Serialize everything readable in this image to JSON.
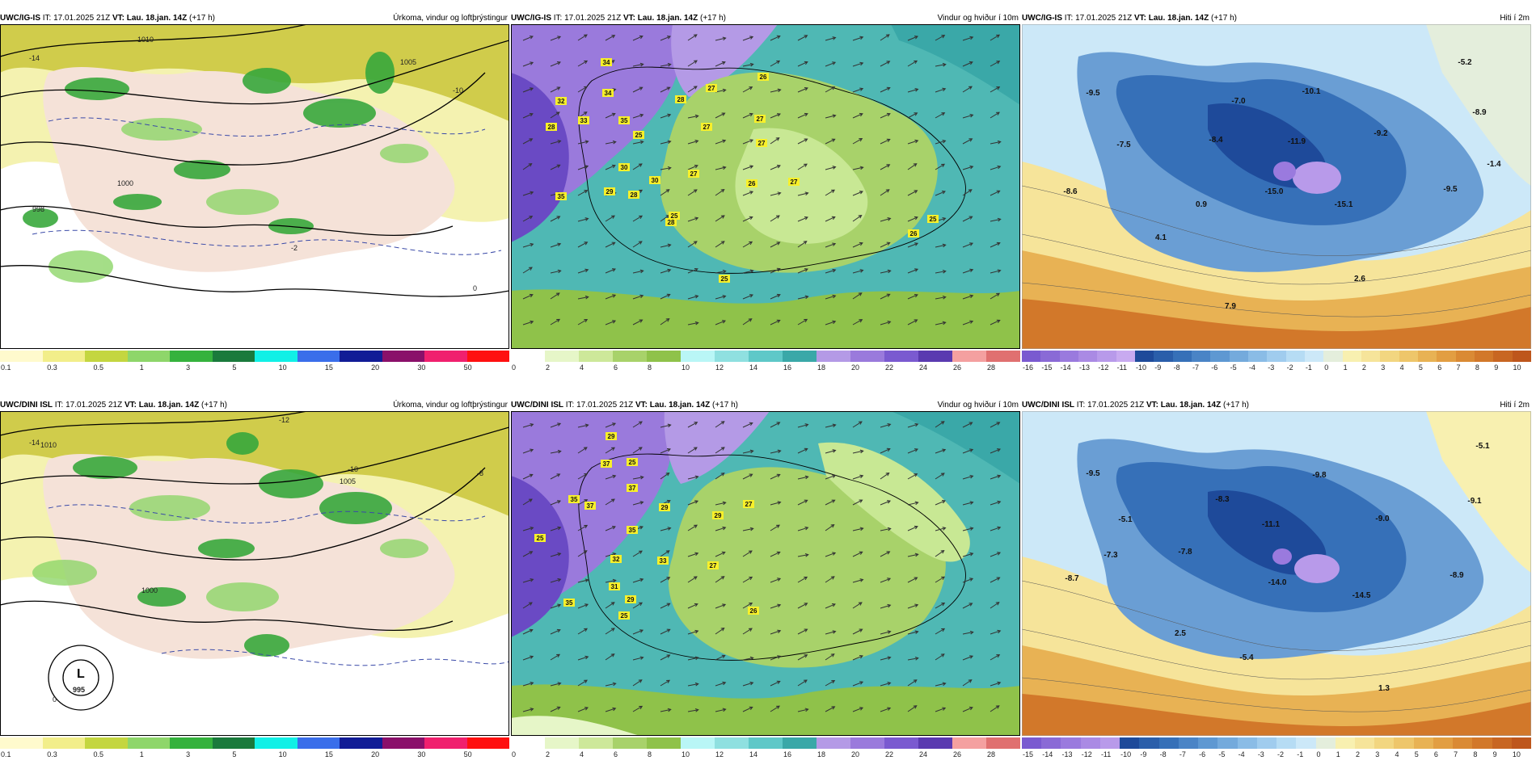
{
  "panels": [
    {
      "id": "igis-precip",
      "header": {
        "source": "UWC/IG-IS",
        "it_label": "IT:",
        "it_value": "17.01.2025 21Z",
        "vt_label": "VT:",
        "vt_value": "Lau. 18.jan. 14Z",
        "offset": "(+17 h)",
        "title": "Úrkoma, vindur og loftþrýstingur"
      },
      "scale_ticks": [
        "0.1",
        "0.3",
        "0.5",
        "1",
        "3",
        "5",
        "10",
        "15",
        "20",
        "30",
        "50"
      ],
      "scale_colors": [
        "#fffacd",
        "#f2ee8a",
        "#c4d640",
        "#8ed66a",
        "#35b23d",
        "#1a7a3c",
        "#11f0e6",
        "#3a6eea",
        "#111c96",
        "#8a106a",
        "#f0206e",
        "#ff1010"
      ],
      "labels": [
        {
          "t": "1010"
        },
        {
          "t": "1005"
        },
        {
          "t": "1000"
        },
        {
          "t": "998"
        },
        {
          "t": "-14"
        },
        {
          "t": "-10"
        },
        {
          "t": "-2"
        },
        {
          "t": "0"
        }
      ]
    },
    {
      "id": "igis-wind",
      "header": {
        "source": "UWC/IG-IS",
        "it_label": "IT:",
        "it_value": "17.01.2025 21Z",
        "vt_label": "VT:",
        "vt_value": "Lau. 18.jan. 14Z",
        "offset": "(+17 h)",
        "title": "Vindur og hviður í 10m"
      },
      "scale_ticks": [
        "0",
        "2",
        "4",
        "6",
        "8",
        "10",
        "12",
        "14",
        "16",
        "18",
        "20",
        "22",
        "24",
        "26",
        "28"
      ],
      "scale_colors": [
        "#ffffff",
        "#e6f6c8",
        "#cde89a",
        "#a8d26a",
        "#8fc24a",
        "#b9f6f6",
        "#8fe0e0",
        "#5fc8c8",
        "#3aa8a8",
        "#b49ae6",
        "#9a7adc",
        "#7a5ad0",
        "#5a3ab0",
        "#f4a0a0",
        "#e07070"
      ],
      "labels": [
        {
          "t": "34"
        },
        {
          "t": "32"
        },
        {
          "t": "34"
        },
        {
          "t": "28"
        },
        {
          "t": "33"
        },
        {
          "t": "35"
        },
        {
          "t": "25"
        },
        {
          "t": "28"
        },
        {
          "t": "27"
        },
        {
          "t": "27"
        },
        {
          "t": "26"
        },
        {
          "t": "27"
        },
        {
          "t": "30"
        },
        {
          "t": "30"
        },
        {
          "t": "27"
        },
        {
          "t": "25"
        },
        {
          "t": "29"
        },
        {
          "t": "28"
        },
        {
          "t": "26"
        },
        {
          "t": "27"
        },
        {
          "t": "27"
        },
        {
          "t": "28"
        },
        {
          "t": "25"
        },
        {
          "t": "25"
        },
        {
          "t": "26"
        },
        {
          "t": "35"
        }
      ]
    },
    {
      "id": "igis-temp",
      "header": {
        "source": "UWC/IG-IS",
        "it_label": "IT:",
        "it_value": "17.01.2025 21Z",
        "vt_label": "VT:",
        "vt_value": "Lau. 18.jan. 14Z",
        "offset": "(+17 h)",
        "title": "Hiti í 2m"
      },
      "scale_ticks": [
        "-16",
        "-15",
        "-14",
        "-13",
        "-12",
        "-11",
        "-10",
        "-9",
        "-8",
        "-7",
        "-6",
        "-5",
        "-4",
        "-3",
        "-2",
        "-1",
        "0",
        "1",
        "2",
        "3",
        "4",
        "5",
        "6",
        "7",
        "8",
        "9",
        "10"
      ],
      "scale_colors": [
        "#7a5ad0",
        "#8a6ad6",
        "#9a7ade",
        "#aa8ae4",
        "#b89aea",
        "#c8aaf0",
        "#1e4a9a",
        "#2a5eaa",
        "#3670b8",
        "#4a84c6",
        "#5e98d2",
        "#74aadc",
        "#8abce6",
        "#a0ccee",
        "#b6dcf4",
        "#cce8f8",
        "#e4eedc",
        "#f8f0b0",
        "#f6e49a",
        "#f2d680",
        "#eec66a",
        "#e8b254",
        "#e29e42",
        "#da8a34",
        "#d2782a",
        "#c86622",
        "#be561c"
      ],
      "labels": [
        {
          "t": "-9.5"
        },
        {
          "t": "-7.0"
        },
        {
          "t": "-10.1"
        },
        {
          "t": "-5.2"
        },
        {
          "t": "-8.9"
        },
        {
          "t": "-7.5"
        },
        {
          "t": "-8.4"
        },
        {
          "t": "-11.9"
        },
        {
          "t": "-9.2"
        },
        {
          "t": "-1.4"
        },
        {
          "t": "-8.6"
        },
        {
          "t": "-15.0"
        },
        {
          "t": "-15.1"
        },
        {
          "t": "-9.5"
        },
        {
          "t": "0.9"
        },
        {
          "t": "4.1"
        },
        {
          "t": "2.6"
        },
        {
          "t": "7.9"
        }
      ]
    },
    {
      "id": "dini-precip",
      "header": {
        "source": "UWC/DINI ISL",
        "it_label": "IT:",
        "it_value": "17.01.2025 21Z",
        "vt_label": "VT:",
        "vt_value": "Lau. 18.jan. 14Z",
        "offset": "(+17 h)",
        "title": "Úrkoma, vindur og loftþrýstingur"
      },
      "scale_ticks": [
        "0.1",
        "0.3",
        "0.5",
        "1",
        "3",
        "5",
        "10",
        "15",
        "20",
        "30",
        "50"
      ],
      "scale_colors": [
        "#fffacd",
        "#f2ee8a",
        "#c4d640",
        "#8ed66a",
        "#35b23d",
        "#1a7a3c",
        "#11f0e6",
        "#3a6eea",
        "#111c96",
        "#8a106a",
        "#f0206e",
        "#ff1010"
      ],
      "labels": [
        {
          "t": "1010"
        },
        {
          "t": "1005"
        },
        {
          "t": "1000"
        },
        {
          "t": "-14"
        },
        {
          "t": "-12"
        },
        {
          "t": "-10"
        },
        {
          "t": "-8"
        },
        {
          "t": "L"
        },
        {
          "t": "995"
        },
        {
          "t": "0"
        }
      ]
    },
    {
      "id": "dini-wind",
      "header": {
        "source": "UWC/DINI ISL",
        "it_label": "IT:",
        "it_value": "17.01.2025 21Z",
        "vt_label": "VT:",
        "vt_value": "Lau. 18.jan. 14Z",
        "offset": "(+17 h)",
        "title": "Vindur og hviður í 10m"
      },
      "scale_ticks": [
        "0",
        "2",
        "4",
        "6",
        "8",
        "10",
        "12",
        "14",
        "16",
        "18",
        "20",
        "22",
        "24",
        "26",
        "28"
      ],
      "scale_colors": [
        "#ffffff",
        "#e6f6c8",
        "#cde89a",
        "#a8d26a",
        "#8fc24a",
        "#b9f6f6",
        "#8fe0e0",
        "#5fc8c8",
        "#3aa8a8",
        "#b49ae6",
        "#9a7adc",
        "#7a5ad0",
        "#5a3ab0",
        "#f4a0a0",
        "#e07070"
      ],
      "labels": [
        {
          "t": "29"
        },
        {
          "t": "37"
        },
        {
          "t": "25"
        },
        {
          "t": "37"
        },
        {
          "t": "35"
        },
        {
          "t": "37"
        },
        {
          "t": "29"
        },
        {
          "t": "35"
        },
        {
          "t": "32"
        },
        {
          "t": "31"
        },
        {
          "t": "33"
        },
        {
          "t": "29"
        },
        {
          "t": "35"
        },
        {
          "t": "27"
        },
        {
          "t": "29"
        },
        {
          "t": "26"
        },
        {
          "t": "27"
        },
        {
          "t": "25"
        },
        {
          "t": "25"
        }
      ]
    },
    {
      "id": "dini-temp",
      "header": {
        "source": "UWC/DINI ISL",
        "it_label": "IT:",
        "it_value": "17.01.2025 21Z",
        "vt_label": "VT:",
        "vt_value": "Lau. 18.jan. 14Z",
        "offset": "(+17 h)",
        "title": "Hiti í 2m"
      },
      "scale_ticks": [
        "-15",
        "-14",
        "-13",
        "-12",
        "-11",
        "-10",
        "-9",
        "-8",
        "-7",
        "-6",
        "-5",
        "-4",
        "-3",
        "-2",
        "-1",
        "0",
        "1",
        "2",
        "3",
        "4",
        "5",
        "6",
        "7",
        "8",
        "9",
        "10"
      ],
      "scale_colors": [
        "#7a5ad0",
        "#8a6ad6",
        "#9a7ade",
        "#aa8ae4",
        "#b89aea",
        "#1e4a9a",
        "#2a5eaa",
        "#3670b8",
        "#4a84c6",
        "#5e98d2",
        "#74aadc",
        "#8abce6",
        "#a0ccee",
        "#b6dcf4",
        "#cce8f8",
        "#e4eedc",
        "#f8f0b0",
        "#f6e49a",
        "#f2d680",
        "#eec66a",
        "#e8b254",
        "#e29e42",
        "#da8a34",
        "#d2782a",
        "#c86622",
        "#be561c"
      ],
      "labels": [
        {
          "t": "-9.5"
        },
        {
          "t": "-9.8"
        },
        {
          "t": "-5.1"
        },
        {
          "t": "-8.3"
        },
        {
          "t": "-9.1"
        },
        {
          "t": "-5.1"
        },
        {
          "t": "-11.1"
        },
        {
          "t": "-9.0"
        },
        {
          "t": "-7.3"
        },
        {
          "t": "-7.8"
        },
        {
          "t": "-8.7"
        },
        {
          "t": "-14.0"
        },
        {
          "t": "-14.5"
        },
        {
          "t": "-8.9"
        },
        {
          "t": "2.5"
        },
        {
          "t": "-5.4"
        },
        {
          "t": "1.3"
        }
      ]
    }
  ]
}
